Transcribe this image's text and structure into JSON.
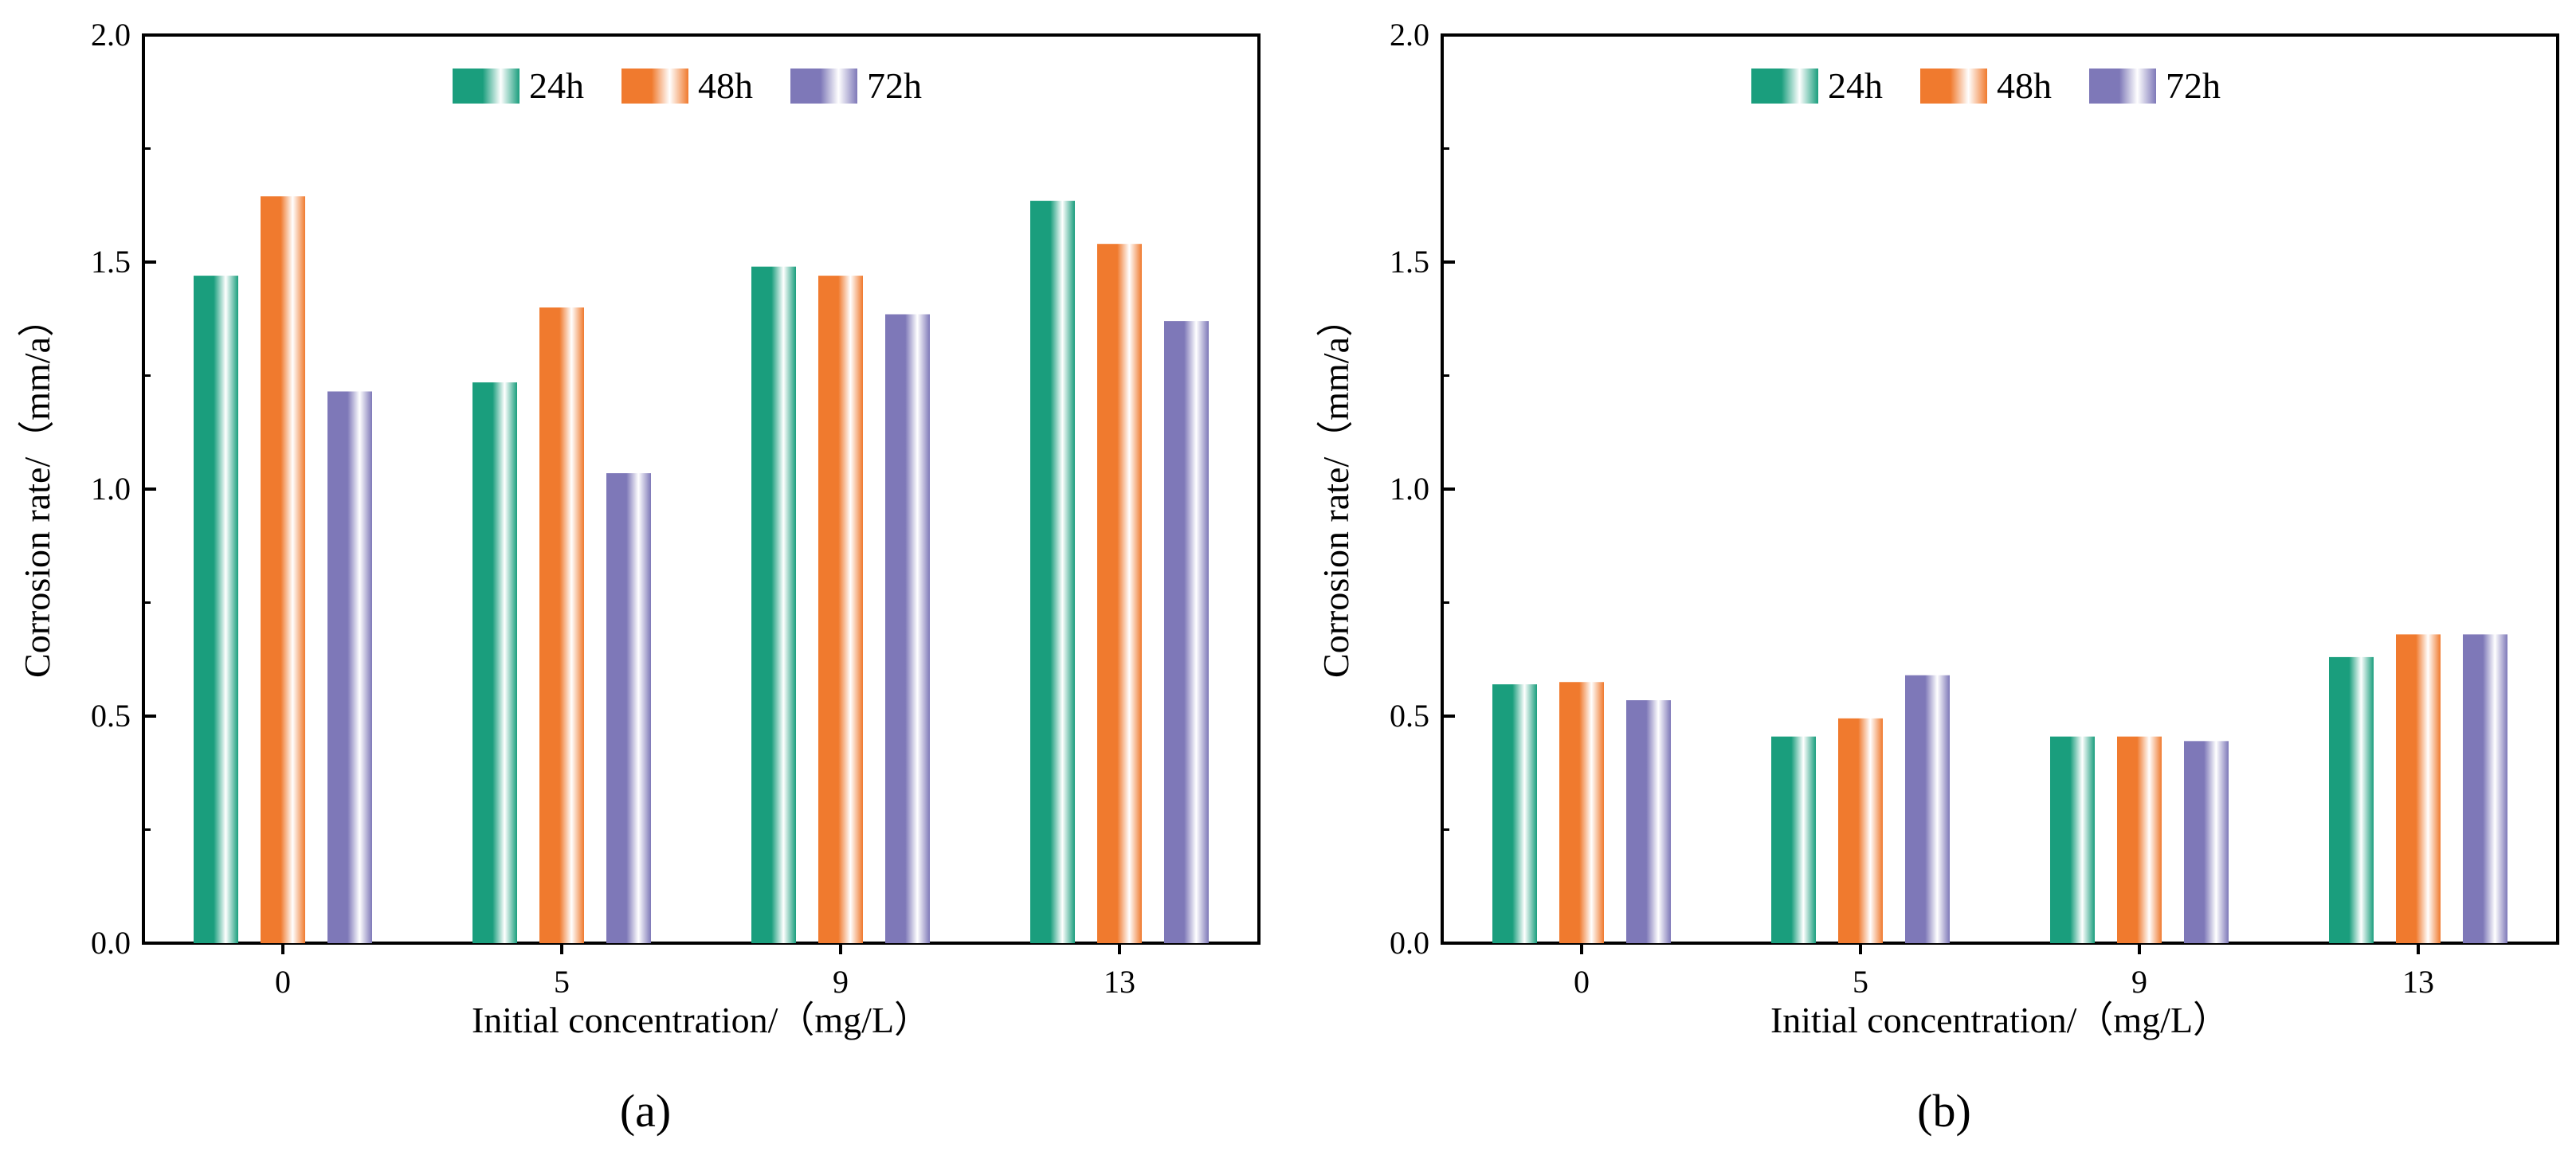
{
  "chart_data": [
    {
      "type": "bar",
      "panel_label": "(a)",
      "categories": [
        "0",
        "5",
        "9",
        "13"
      ],
      "series": [
        {
          "name": "24h",
          "values": [
            1.47,
            1.235,
            1.49,
            1.635
          ]
        },
        {
          "name": "48h",
          "values": [
            1.645,
            1.4,
            1.47,
            1.54
          ]
        },
        {
          "name": "72h",
          "values": [
            1.215,
            1.035,
            1.385,
            1.37
          ]
        }
      ],
      "xlabel": "Initial concentration/（mg/L）",
      "ylabel": "Corrosion rate/（mm/a）",
      "ylim": [
        0,
        2.0
      ],
      "yticks": [
        "0.0",
        "0.5",
        "1.0",
        "1.5",
        "2.0"
      ],
      "grid": false,
      "legend_position": "top-center"
    },
    {
      "type": "bar",
      "panel_label": "(b)",
      "categories": [
        "0",
        "5",
        "9",
        "13"
      ],
      "series": [
        {
          "name": "24h",
          "values": [
            0.57,
            0.455,
            0.455,
            0.63
          ]
        },
        {
          "name": "48h",
          "values": [
            0.575,
            0.495,
            0.455,
            0.68
          ]
        },
        {
          "name": "72h",
          "values": [
            0.535,
            0.59,
            0.445,
            0.68
          ]
        }
      ],
      "xlabel": "Initial concentration/（mg/L）",
      "ylabel": "Corrosion rate/（mm/a）",
      "ylim": [
        0,
        2.0
      ],
      "yticks": [
        "0.0",
        "0.5",
        "1.0",
        "1.5",
        "2.0"
      ],
      "grid": false,
      "legend_position": "top-center"
    }
  ],
  "colors": {
    "24h": "#1a9e7d",
    "48h": "#f07a2e",
    "72h": "#7e78b8"
  }
}
